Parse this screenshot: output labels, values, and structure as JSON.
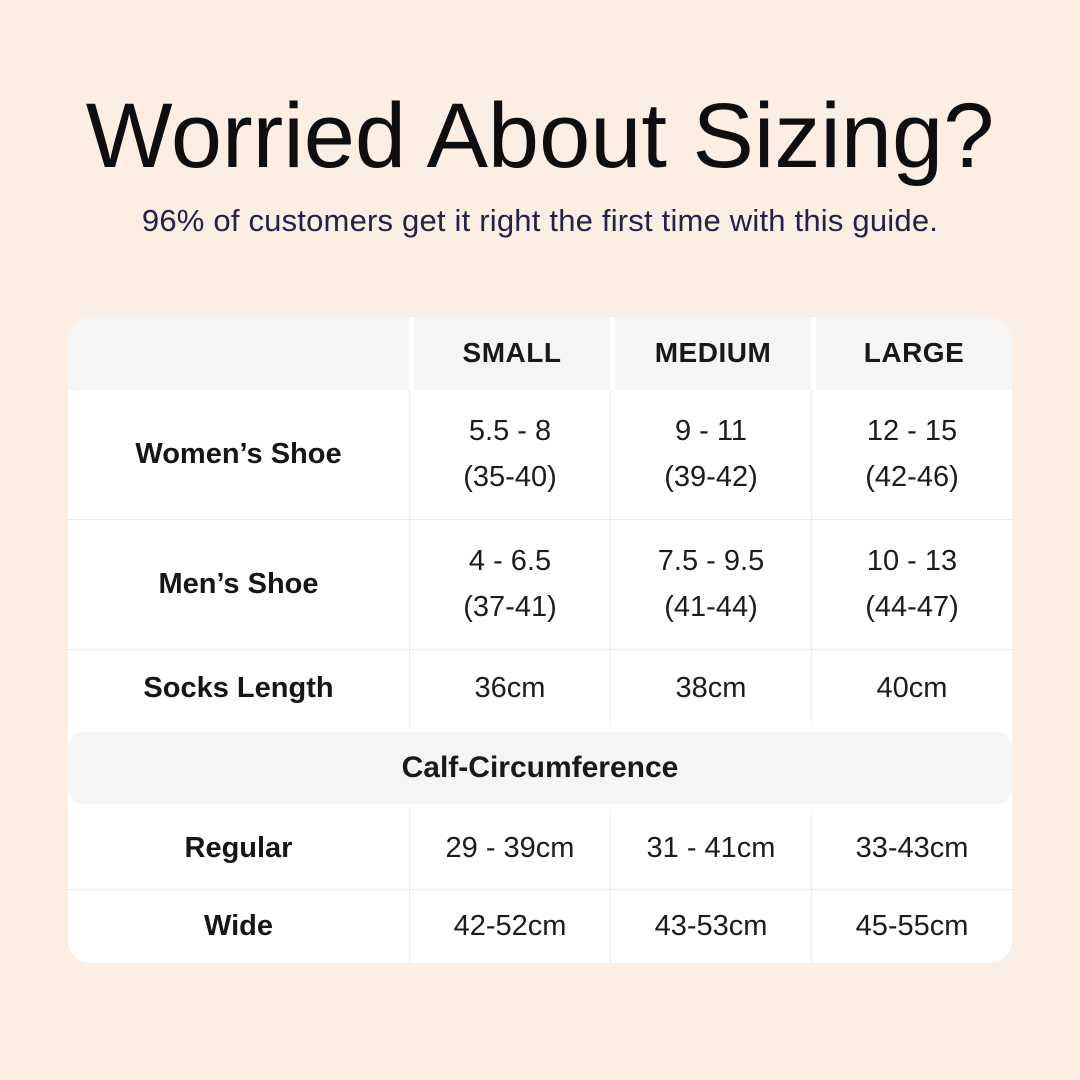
{
  "header": {
    "title": "Worried About Sizing?",
    "subtitle": "96% of customers get it right the first time with this guide."
  },
  "table": {
    "columns": [
      "",
      "SMALL",
      "MEDIUM",
      "LARGE"
    ],
    "rows": [
      {
        "label": "Women’s Shoe",
        "small": {
          "line1": "5.5 - 8",
          "line2": "(35-40)"
        },
        "medium": {
          "line1": "9 - 11",
          "line2": "(39-42)"
        },
        "large": {
          "line1": "12 - 15",
          "line2": "(42-46)"
        }
      },
      {
        "label": "Men’s Shoe",
        "small": {
          "line1": "4 - 6.5",
          "line2": "(37-41)"
        },
        "medium": {
          "line1": "7.5 - 9.5",
          "line2": "(41-44)"
        },
        "large": {
          "line1": "10 - 13",
          "line2": "(44-47)"
        }
      },
      {
        "label": "Socks Length",
        "small": {
          "line1": "36cm"
        },
        "medium": {
          "line1": "38cm"
        },
        "large": {
          "line1": "40cm"
        }
      }
    ],
    "section_header": "Calf-Circumference",
    "calf_rows": [
      {
        "label": "Regular",
        "small": "29 - 39cm",
        "medium": "31 - 41cm",
        "large": "33-43cm"
      },
      {
        "label": "Wide",
        "small": "42-52cm",
        "medium": "43-53cm",
        "large": "45-55cm"
      }
    ]
  },
  "colors": {
    "background": "#fdeee4",
    "title_text": "#0e0e10",
    "subtitle_text": "#232349",
    "table_background": "#ffffff",
    "header_background": "#f6f5f3",
    "band_background": "#f6f5f3",
    "divider": "#ededeb",
    "cell_text": "#1c1c1e"
  },
  "chart_data": {
    "type": "table",
    "title": "Worried About Sizing?",
    "subtitle": "96% of customers get it right the first time with this guide.",
    "columns": [
      "",
      "SMALL",
      "MEDIUM",
      "LARGE"
    ],
    "rows": [
      [
        "Women’s Shoe",
        "5.5 - 8 (35-40)",
        "9 - 11 (39-42)",
        "12 - 15 (42-46)"
      ],
      [
        "Men’s Shoe",
        "4 - 6.5 (37-41)",
        "7.5 - 9.5 (41-44)",
        "10 - 13 (44-47)"
      ],
      [
        "Socks Length",
        "36cm",
        "38cm",
        "40cm"
      ],
      [
        "Calf-Circumference (section header)",
        "",
        "",
        ""
      ],
      [
        "Regular",
        "29 - 39cm",
        "31 - 41cm",
        "33-43cm"
      ],
      [
        "Wide",
        "42-52cm",
        "43-53cm",
        "45-55cm"
      ]
    ],
    "layout": {
      "header_row_shaded": true,
      "section_band_shaded": true,
      "grid": true
    }
  }
}
